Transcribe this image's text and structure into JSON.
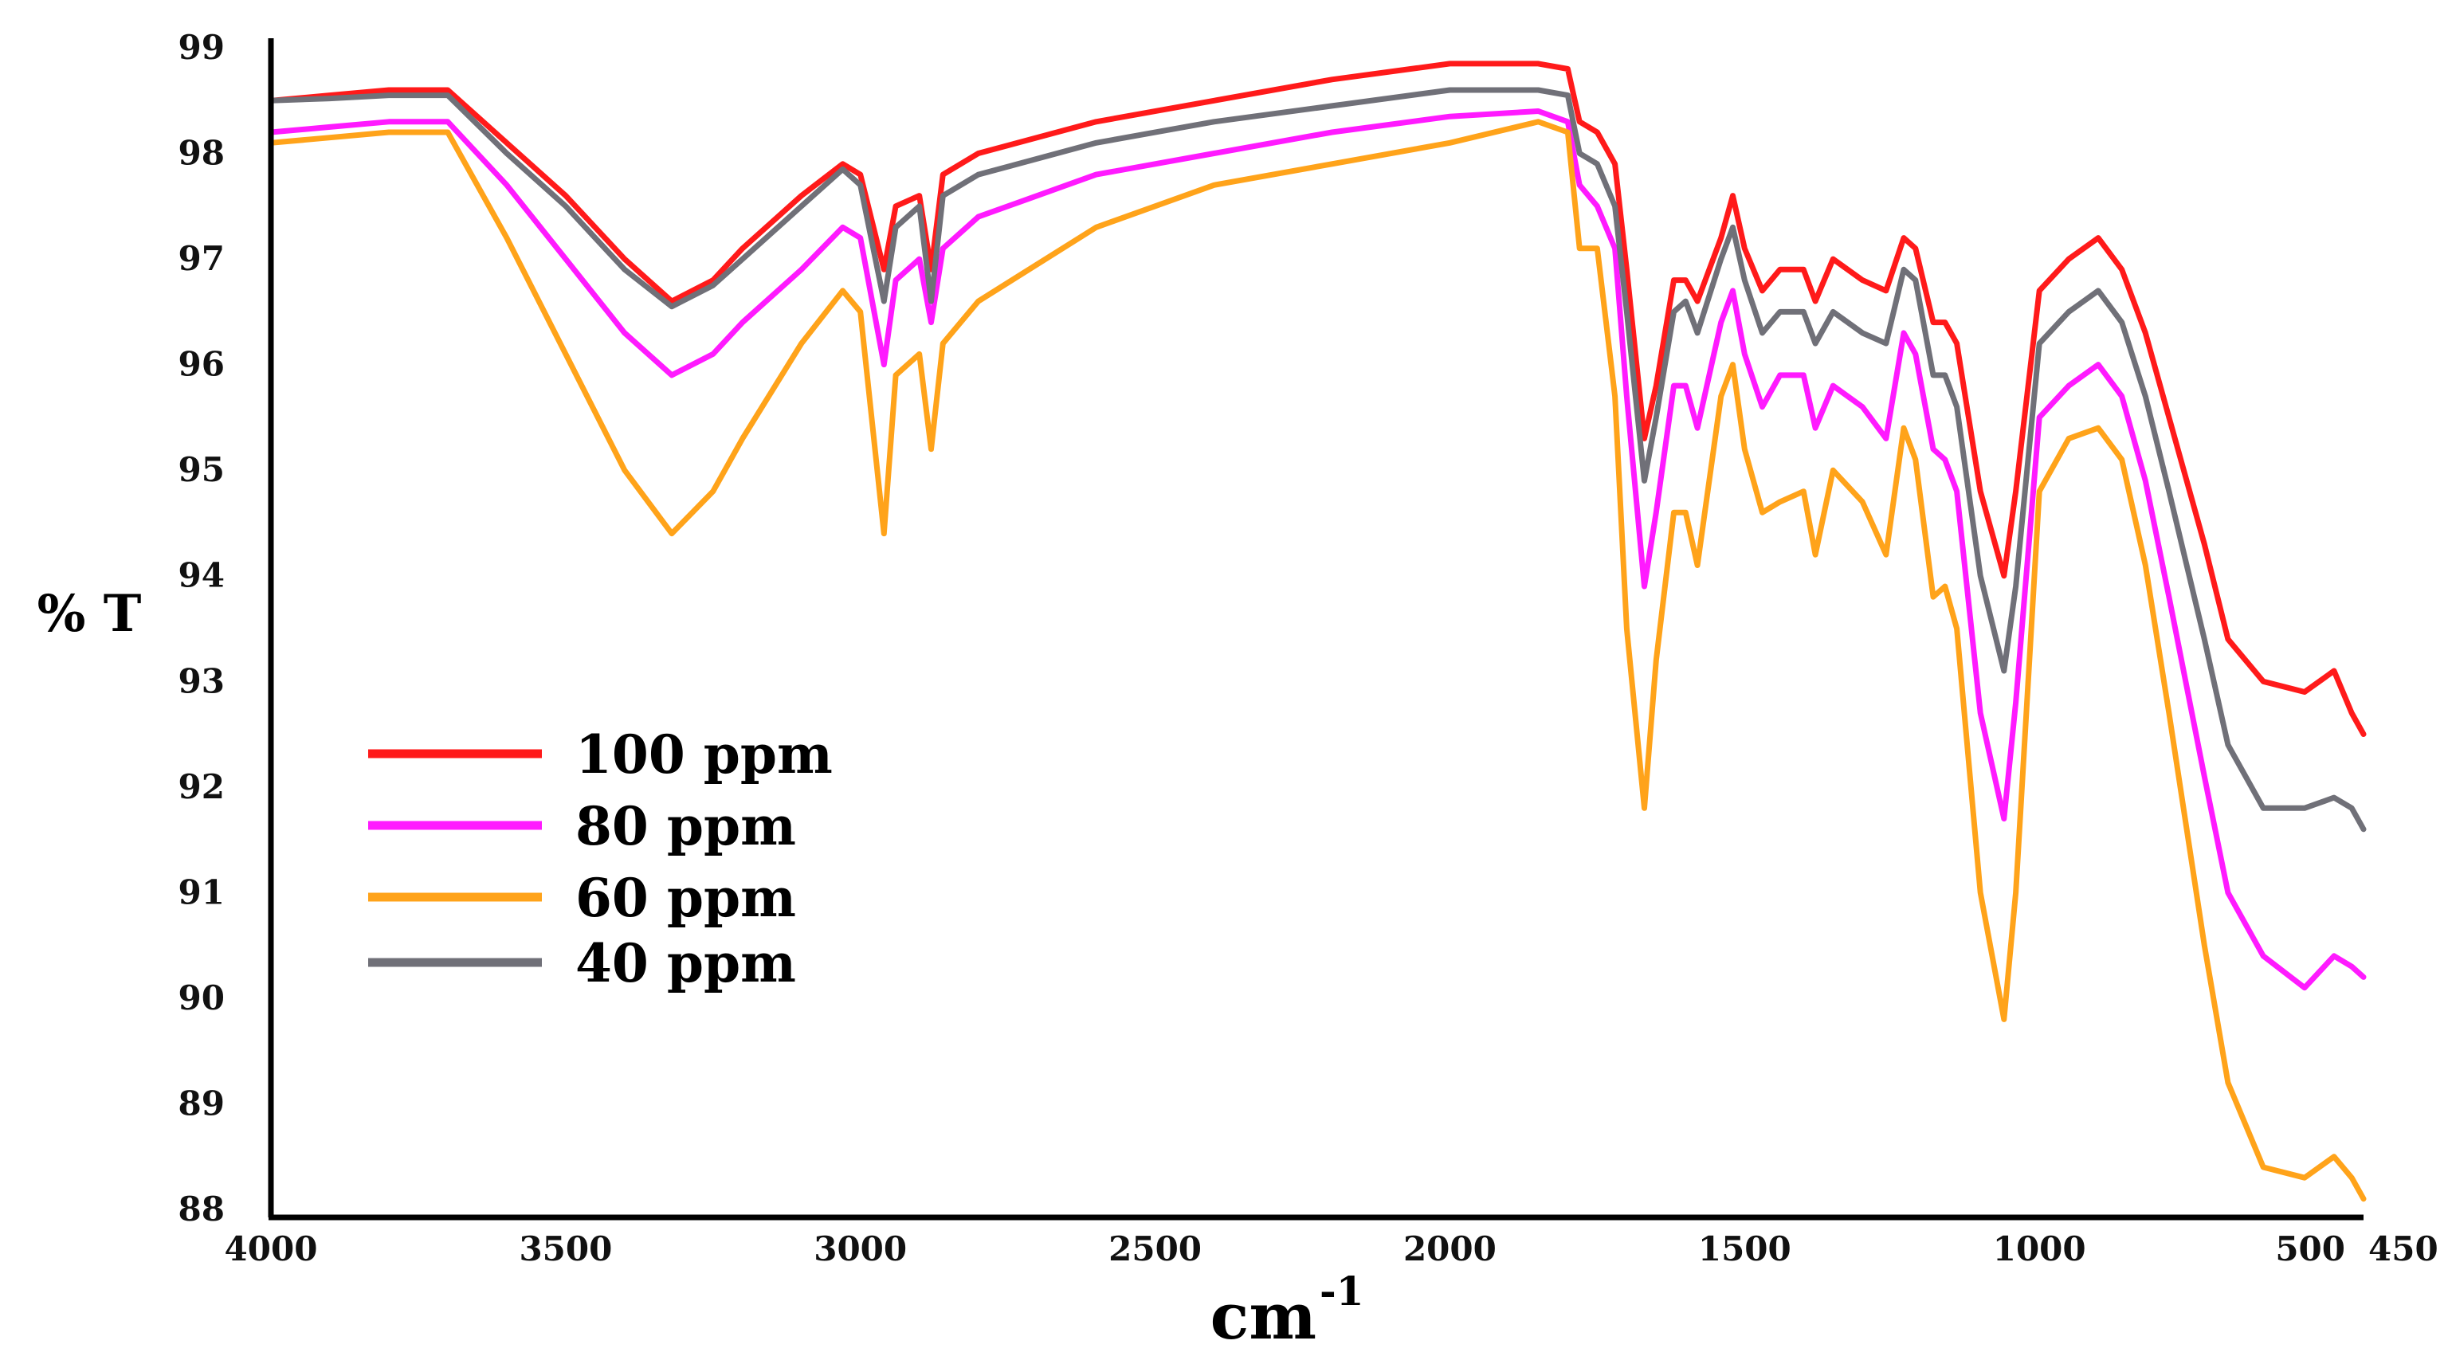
{
  "chart_data": {
    "type": "line",
    "title": "",
    "xlabel": "cm",
    "xlabel_superscript": "-1",
    "ylabel": "% T",
    "x_reversed": true,
    "xlim": [
      4000,
      450
    ],
    "ylim": [
      88,
      99
    ],
    "x_ticks": [
      4000,
      3500,
      3000,
      2500,
      2000,
      1500,
      1000,
      500,
      450
    ],
    "x_tick_labels": [
      "4000",
      "3500",
      "3000",
      "2500",
      "2000",
      "1500",
      "1000",
      "500",
      "450"
    ],
    "y_ticks": [
      99,
      98,
      97,
      96,
      95,
      94,
      93,
      92,
      91,
      90,
      89,
      88
    ],
    "y_tick_labels": [
      "99",
      "98",
      "97",
      "96",
      "95",
      "94",
      "93",
      "92",
      "91",
      "90",
      "89",
      "88"
    ],
    "grid": false,
    "legend_position": "lower-left",
    "series": [
      {
        "name": "100 ppm",
        "color": "#ff1a1a",
        "points": [
          [
            4000,
            98.5
          ],
          [
            3900,
            98.55
          ],
          [
            3800,
            98.6
          ],
          [
            3700,
            98.6
          ],
          [
            3600,
            98.1
          ],
          [
            3500,
            97.6
          ],
          [
            3400,
            97.0
          ],
          [
            3320,
            96.6
          ],
          [
            3250,
            96.8
          ],
          [
            3200,
            97.1
          ],
          [
            3100,
            97.6
          ],
          [
            3030,
            97.9
          ],
          [
            3000,
            97.8
          ],
          [
            2960,
            96.9
          ],
          [
            2940,
            97.5
          ],
          [
            2900,
            97.6
          ],
          [
            2880,
            96.9
          ],
          [
            2860,
            97.8
          ],
          [
            2800,
            98.0
          ],
          [
            2600,
            98.3
          ],
          [
            2400,
            98.5
          ],
          [
            2200,
            98.7
          ],
          [
            2000,
            98.85
          ],
          [
            1850,
            98.85
          ],
          [
            1800,
            98.8
          ],
          [
            1780,
            98.3
          ],
          [
            1750,
            98.2
          ],
          [
            1720,
            97.9
          ],
          [
            1700,
            96.9
          ],
          [
            1670,
            95.3
          ],
          [
            1650,
            95.8
          ],
          [
            1620,
            96.8
          ],
          [
            1600,
            96.8
          ],
          [
            1580,
            96.6
          ],
          [
            1540,
            97.2
          ],
          [
            1520,
            97.6
          ],
          [
            1500,
            97.1
          ],
          [
            1470,
            96.7
          ],
          [
            1440,
            96.9
          ],
          [
            1400,
            96.9
          ],
          [
            1380,
            96.6
          ],
          [
            1350,
            97.0
          ],
          [
            1300,
            96.8
          ],
          [
            1260,
            96.7
          ],
          [
            1230,
            97.2
          ],
          [
            1210,
            97.1
          ],
          [
            1180,
            96.4
          ],
          [
            1160,
            96.4
          ],
          [
            1140,
            96.2
          ],
          [
            1100,
            94.8
          ],
          [
            1060,
            94.0
          ],
          [
            1040,
            94.8
          ],
          [
            1000,
            96.7
          ],
          [
            950,
            97.0
          ],
          [
            900,
            97.2
          ],
          [
            860,
            96.9
          ],
          [
            820,
            96.3
          ],
          [
            780,
            95.5
          ],
          [
            720,
            94.3
          ],
          [
            680,
            93.4
          ],
          [
            620,
            93.0
          ],
          [
            550,
            92.9
          ],
          [
            500,
            93.1
          ],
          [
            470,
            92.7
          ],
          [
            450,
            92.5
          ]
        ]
      },
      {
        "name": "80 ppm",
        "color": "#ff1aff",
        "points": [
          [
            4000,
            98.2
          ],
          [
            3900,
            98.25
          ],
          [
            3800,
            98.3
          ],
          [
            3700,
            98.3
          ],
          [
            3600,
            97.7
          ],
          [
            3500,
            97.0
          ],
          [
            3400,
            96.3
          ],
          [
            3320,
            95.9
          ],
          [
            3250,
            96.1
          ],
          [
            3200,
            96.4
          ],
          [
            3100,
            96.9
          ],
          [
            3030,
            97.3
          ],
          [
            3000,
            97.2
          ],
          [
            2960,
            96.0
          ],
          [
            2940,
            96.8
          ],
          [
            2900,
            97.0
          ],
          [
            2880,
            96.4
          ],
          [
            2860,
            97.1
          ],
          [
            2800,
            97.4
          ],
          [
            2600,
            97.8
          ],
          [
            2400,
            98.0
          ],
          [
            2200,
            98.2
          ],
          [
            2000,
            98.35
          ],
          [
            1850,
            98.4
          ],
          [
            1800,
            98.3
          ],
          [
            1780,
            97.7
          ],
          [
            1750,
            97.5
          ],
          [
            1720,
            97.1
          ],
          [
            1700,
            95.7
          ],
          [
            1670,
            93.9
          ],
          [
            1650,
            94.6
          ],
          [
            1620,
            95.8
          ],
          [
            1600,
            95.8
          ],
          [
            1580,
            95.4
          ],
          [
            1540,
            96.4
          ],
          [
            1520,
            96.7
          ],
          [
            1500,
            96.1
          ],
          [
            1470,
            95.6
          ],
          [
            1440,
            95.9
          ],
          [
            1400,
            95.9
          ],
          [
            1380,
            95.4
          ],
          [
            1350,
            95.8
          ],
          [
            1300,
            95.6
          ],
          [
            1260,
            95.3
          ],
          [
            1230,
            96.3
          ],
          [
            1210,
            96.1
          ],
          [
            1180,
            95.2
          ],
          [
            1160,
            95.1
          ],
          [
            1140,
            94.8
          ],
          [
            1100,
            92.7
          ],
          [
            1060,
            91.7
          ],
          [
            1040,
            92.8
          ],
          [
            1000,
            95.5
          ],
          [
            950,
            95.8
          ],
          [
            900,
            96.0
          ],
          [
            860,
            95.7
          ],
          [
            820,
            94.9
          ],
          [
            780,
            93.8
          ],
          [
            720,
            92.1
          ],
          [
            680,
            91.0
          ],
          [
            620,
            90.4
          ],
          [
            550,
            90.1
          ],
          [
            500,
            90.4
          ],
          [
            470,
            90.3
          ],
          [
            450,
            90.2
          ]
        ]
      },
      {
        "name": "60 ppm",
        "color": "#ffa31a",
        "points": [
          [
            4000,
            98.1
          ],
          [
            3900,
            98.15
          ],
          [
            3800,
            98.2
          ],
          [
            3700,
            98.2
          ],
          [
            3600,
            97.2
          ],
          [
            3500,
            96.1
          ],
          [
            3400,
            95.0
          ],
          [
            3320,
            94.4
          ],
          [
            3250,
            94.8
          ],
          [
            3200,
            95.3
          ],
          [
            3100,
            96.2
          ],
          [
            3030,
            96.7
          ],
          [
            3000,
            96.5
          ],
          [
            2960,
            94.4
          ],
          [
            2940,
            95.9
          ],
          [
            2900,
            96.1
          ],
          [
            2880,
            95.2
          ],
          [
            2860,
            96.2
          ],
          [
            2800,
            96.6
          ],
          [
            2600,
            97.3
          ],
          [
            2400,
            97.7
          ],
          [
            2200,
            97.9
          ],
          [
            2000,
            98.1
          ],
          [
            1850,
            98.3
          ],
          [
            1800,
            98.2
          ],
          [
            1780,
            97.1
          ],
          [
            1750,
            97.1
          ],
          [
            1720,
            95.7
          ],
          [
            1700,
            93.5
          ],
          [
            1670,
            91.8
          ],
          [
            1650,
            93.2
          ],
          [
            1620,
            94.6
          ],
          [
            1600,
            94.6
          ],
          [
            1580,
            94.1
          ],
          [
            1540,
            95.7
          ],
          [
            1520,
            96.0
          ],
          [
            1500,
            95.2
          ],
          [
            1470,
            94.6
          ],
          [
            1440,
            94.7
          ],
          [
            1400,
            94.8
          ],
          [
            1380,
            94.2
          ],
          [
            1350,
            95.0
          ],
          [
            1300,
            94.7
          ],
          [
            1260,
            94.2
          ],
          [
            1230,
            95.4
          ],
          [
            1210,
            95.1
          ],
          [
            1180,
            93.8
          ],
          [
            1160,
            93.9
          ],
          [
            1140,
            93.5
          ],
          [
            1100,
            91.0
          ],
          [
            1060,
            89.8
          ],
          [
            1040,
            91.0
          ],
          [
            1000,
            94.8
          ],
          [
            950,
            95.3
          ],
          [
            900,
            95.4
          ],
          [
            860,
            95.1
          ],
          [
            820,
            94.1
          ],
          [
            780,
            92.7
          ],
          [
            720,
            90.5
          ],
          [
            680,
            89.2
          ],
          [
            620,
            88.4
          ],
          [
            550,
            88.3
          ],
          [
            500,
            88.5
          ],
          [
            470,
            88.3
          ],
          [
            450,
            88.1
          ]
        ]
      },
      {
        "name": "40 ppm",
        "color": "#707078",
        "points": [
          [
            4000,
            98.5
          ],
          [
            3900,
            98.52
          ],
          [
            3800,
            98.55
          ],
          [
            3700,
            98.55
          ],
          [
            3600,
            98.0
          ],
          [
            3500,
            97.5
          ],
          [
            3400,
            96.9
          ],
          [
            3320,
            96.55
          ],
          [
            3250,
            96.75
          ],
          [
            3200,
            97.0
          ],
          [
            3100,
            97.5
          ],
          [
            3030,
            97.85
          ],
          [
            3000,
            97.7
          ],
          [
            2960,
            96.6
          ],
          [
            2940,
            97.3
          ],
          [
            2900,
            97.5
          ],
          [
            2880,
            96.6
          ],
          [
            2860,
            97.6
          ],
          [
            2800,
            97.8
          ],
          [
            2600,
            98.1
          ],
          [
            2400,
            98.3
          ],
          [
            2200,
            98.45
          ],
          [
            2000,
            98.6
          ],
          [
            1850,
            98.6
          ],
          [
            1800,
            98.55
          ],
          [
            1780,
            98.0
          ],
          [
            1750,
            97.9
          ],
          [
            1720,
            97.5
          ],
          [
            1700,
            96.5
          ],
          [
            1670,
            94.9
          ],
          [
            1650,
            95.5
          ],
          [
            1620,
            96.5
          ],
          [
            1600,
            96.6
          ],
          [
            1580,
            96.3
          ],
          [
            1540,
            97.0
          ],
          [
            1520,
            97.3
          ],
          [
            1500,
            96.8
          ],
          [
            1470,
            96.3
          ],
          [
            1440,
            96.5
          ],
          [
            1400,
            96.5
          ],
          [
            1380,
            96.2
          ],
          [
            1350,
            96.5
          ],
          [
            1300,
            96.3
          ],
          [
            1260,
            96.2
          ],
          [
            1230,
            96.9
          ],
          [
            1210,
            96.8
          ],
          [
            1180,
            95.9
          ],
          [
            1160,
            95.9
          ],
          [
            1140,
            95.6
          ],
          [
            1100,
            94.0
          ],
          [
            1060,
            93.1
          ],
          [
            1040,
            93.9
          ],
          [
            1000,
            96.2
          ],
          [
            950,
            96.5
          ],
          [
            900,
            96.7
          ],
          [
            860,
            96.4
          ],
          [
            820,
            95.7
          ],
          [
            780,
            94.8
          ],
          [
            720,
            93.4
          ],
          [
            680,
            92.4
          ],
          [
            620,
            91.8
          ],
          [
            550,
            91.8
          ],
          [
            500,
            91.9
          ],
          [
            470,
            91.8
          ],
          [
            450,
            91.6
          ]
        ]
      }
    ]
  }
}
